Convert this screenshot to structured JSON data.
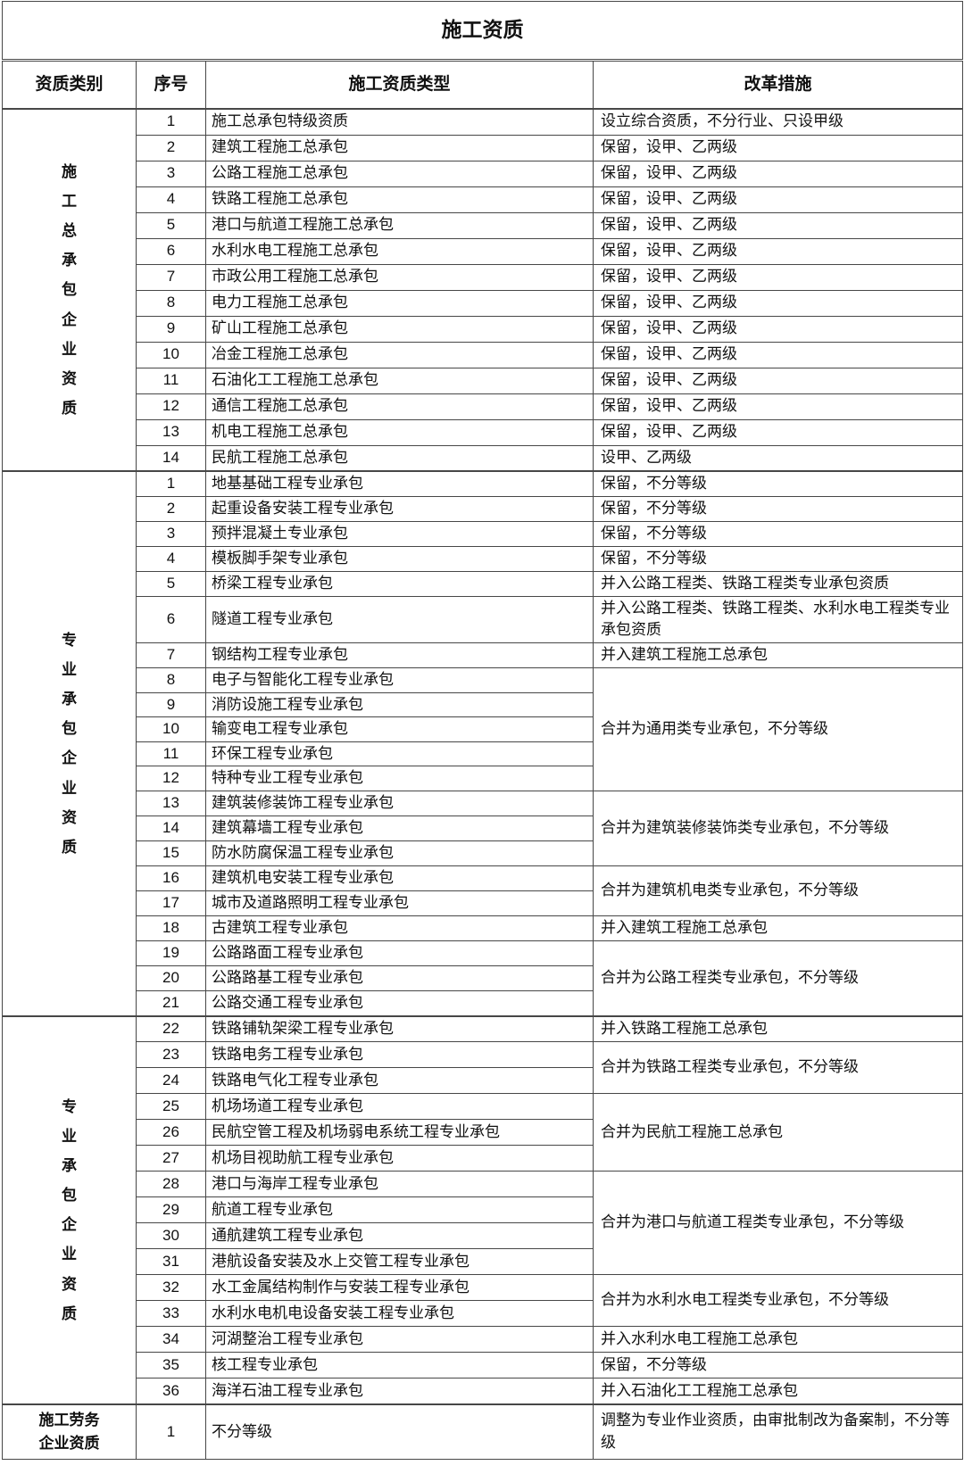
{
  "title": "施工资质",
  "table": {
    "headers": [
      "资质类别",
      "序号",
      "施工资质类型",
      "改革措施"
    ],
    "sections": [
      {
        "category": "施工总承包企业资质",
        "category_orientation": "vertical",
        "rows": [
          {
            "no": "1",
            "type": "施工总承包特级资质",
            "measure": "设立综合资质，不分行业、只设甲级",
            "span": 1
          },
          {
            "no": "2",
            "type": "建筑工程施工总承包",
            "measure": "保留，设甲、乙两级",
            "span": 1
          },
          {
            "no": "3",
            "type": "公路工程施工总承包",
            "measure": "保留，设甲、乙两级",
            "span": 1
          },
          {
            "no": "4",
            "type": "铁路工程施工总承包",
            "measure": "保留，设甲、乙两级",
            "span": 1
          },
          {
            "no": "5",
            "type": "港口与航道工程施工总承包",
            "measure": "保留，设甲、乙两级",
            "span": 1
          },
          {
            "no": "6",
            "type": "水利水电工程施工总承包",
            "measure": "保留，设甲、乙两级",
            "span": 1
          },
          {
            "no": "7",
            "type": "市政公用工程施工总承包",
            "measure": "保留，设甲、乙两级",
            "span": 1
          },
          {
            "no": "8",
            "type": "电力工程施工总承包",
            "measure": "保留，设甲、乙两级",
            "span": 1
          },
          {
            "no": "9",
            "type": "矿山工程施工总承包",
            "measure": "保留，设甲、乙两级",
            "span": 1
          },
          {
            "no": "10",
            "type": "冶金工程施工总承包",
            "measure": "保留，设甲、乙两级",
            "span": 1
          },
          {
            "no": "11",
            "type": "石油化工工程施工总承包",
            "measure": "保留，设甲、乙两级",
            "span": 1
          },
          {
            "no": "12",
            "type": "通信工程施工总承包",
            "measure": "保留，设甲、乙两级",
            "span": 1
          },
          {
            "no": "13",
            "type": "机电工程施工总承包",
            "measure": "保留，设甲、乙两级",
            "span": 1
          },
          {
            "no": "14",
            "type": "民航工程施工总承包",
            "measure": "设甲、乙两级",
            "span": 1
          }
        ]
      },
      {
        "category": "专业承包企业资质",
        "category_orientation": "vertical",
        "rows": [
          {
            "no": "1",
            "type": "地基基础工程专业承包",
            "measure": "保留，不分等级",
            "span": 1
          },
          {
            "no": "2",
            "type": "起重设备安装工程专业承包",
            "measure": "保留，不分等级",
            "span": 1
          },
          {
            "no": "3",
            "type": "预拌混凝土专业承包",
            "measure": "保留，不分等级",
            "span": 1
          },
          {
            "no": "4",
            "type": "模板脚手架专业承包",
            "measure": "保留，不分等级",
            "span": 1
          },
          {
            "no": "5",
            "type": "桥梁工程专业承包",
            "measure": "并入公路工程类、铁路工程类专业承包资质",
            "span": 1
          },
          {
            "no": "6",
            "type": "隧道工程专业承包",
            "measure": "并入公路工程类、铁路工程类、水利水电工程类专业承包资质",
            "span": 1
          },
          {
            "no": "7",
            "type": "钢结构工程专业承包",
            "measure": "并入建筑工程施工总承包",
            "span": 1
          },
          {
            "no": "8",
            "type": "电子与智能化工程专业承包",
            "measure": "合并为通用类专业承包，不分等级",
            "span": 5
          },
          {
            "no": "9",
            "type": "消防设施工程专业承包"
          },
          {
            "no": "10",
            "type": "输变电工程专业承包"
          },
          {
            "no": "11",
            "type": "环保工程专业承包"
          },
          {
            "no": "12",
            "type": "特种专业工程专业承包"
          },
          {
            "no": "13",
            "type": "建筑装修装饰工程专业承包",
            "measure": "合并为建筑装修装饰类专业承包，不分等级",
            "span": 3
          },
          {
            "no": "14",
            "type": "建筑幕墙工程专业承包"
          },
          {
            "no": "15",
            "type": "防水防腐保温工程专业承包"
          },
          {
            "no": "16",
            "type": "建筑机电安装工程专业承包",
            "measure": "合并为建筑机电类专业承包，不分等级",
            "span": 2
          },
          {
            "no": "17",
            "type": "城市及道路照明工程专业承包"
          },
          {
            "no": "18",
            "type": "古建筑工程专业承包",
            "measure": "并入建筑工程施工总承包",
            "span": 1
          },
          {
            "no": "19",
            "type": "公路路面工程专业承包",
            "measure": "合并为公路工程类专业承包，不分等级",
            "span": 3
          },
          {
            "no": "20",
            "type": "公路路基工程专业承包"
          },
          {
            "no": "21",
            "type": "公路交通工程专业承包"
          }
        ]
      },
      {
        "category": "专业承包企业资质",
        "category_orientation": "vertical",
        "rows": [
          {
            "no": "22",
            "type": "铁路铺轨架梁工程专业承包",
            "measure": "并入铁路工程施工总承包",
            "span": 1
          },
          {
            "no": "23",
            "type": "铁路电务工程专业承包",
            "measure": "合并为铁路工程类专业承包，不分等级",
            "span": 2
          },
          {
            "no": "24",
            "type": "铁路电气化工程专业承包"
          },
          {
            "no": "25",
            "type": "机场场道工程专业承包",
            "measure": "合并为民航工程施工总承包",
            "span": 3
          },
          {
            "no": "26",
            "type": "民航空管工程及机场弱电系统工程专业承包"
          },
          {
            "no": "27",
            "type": "机场目视助航工程专业承包"
          },
          {
            "no": "28",
            "type": "港口与海岸工程专业承包",
            "measure": "合并为港口与航道工程类专业承包，不分等级",
            "span": 4
          },
          {
            "no": "29",
            "type": "航道工程专业承包"
          },
          {
            "no": "30",
            "type": "通航建筑工程专业承包"
          },
          {
            "no": "31",
            "type": "港航设备安装及水上交管工程专业承包"
          },
          {
            "no": "32",
            "type": "水工金属结构制作与安装工程专业承包",
            "measure": "合并为水利水电工程类专业承包，不分等级",
            "span": 2
          },
          {
            "no": "33",
            "type": "水利水电机电设备安装工程专业承包"
          },
          {
            "no": "34",
            "type": "河湖整治工程专业承包",
            "measure": "并入水利水电工程施工总承包",
            "span": 1
          },
          {
            "no": "35",
            "type": "核工程专业承包",
            "measure": "保留，不分等级",
            "span": 1
          },
          {
            "no": "36",
            "type": "海洋石油工程专业承包",
            "measure": "并入石油化工工程施工总承包",
            "span": 1
          }
        ]
      },
      {
        "category": "施工劳务企业资质",
        "category_orientation": "horizontal",
        "rows": [
          {
            "no": "1",
            "type": "不分等级",
            "measure": "调整为专业作业资质，由审批制改为备案制，不分等级",
            "span": 1
          }
        ]
      }
    ]
  }
}
